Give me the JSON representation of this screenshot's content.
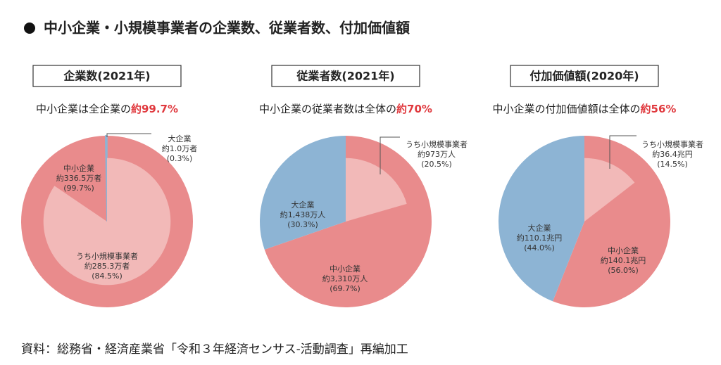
{
  "title": "中小企業・小規模事業者の企業数、従業者数、付加価値額",
  "source": "資料：総務省・経済産業省「令和３年経済センサス‐活動調査」再編加工",
  "chart_data": [
    {
      "type": "pie",
      "title": "企業数(2021年)",
      "subtitle": "中小企業は全企業の",
      "highlight": "約99.7%",
      "categories": [
        "中小企業",
        "大企業",
        "うち小規模事業者"
      ],
      "counts": [
        "約336.5万者",
        "約1.0万者",
        "約285.3万者"
      ],
      "values": [
        99.7,
        0.3,
        84.5
      ],
      "value_labels": [
        "(99.7%)",
        "(0.3%)",
        "(84.5%)"
      ],
      "colors": [
        "#e98b8c",
        "#8db4d4",
        "#f2b9b8"
      ]
    },
    {
      "type": "pie",
      "title": "従業者数(2021年)",
      "subtitle": "中小企業の従業者数は全体の",
      "highlight": "約70%",
      "categories": [
        "中小企業",
        "大企業",
        "うち小規模事業者"
      ],
      "counts": [
        "約3,310万人",
        "約1,438万人",
        "約973万人"
      ],
      "values": [
        69.7,
        30.3,
        20.5
      ],
      "value_labels": [
        "(69.7%)",
        "(30.3%)",
        "(20.5%)"
      ],
      "colors": [
        "#e98b8c",
        "#8db4d4",
        "#f2b9b8"
      ]
    },
    {
      "type": "pie",
      "title": "付加価値額(2020年)",
      "subtitle": "中小企業の付加価値額は全体の",
      "highlight": "約56%",
      "categories": [
        "中小企業",
        "大企業",
        "うち小規模事業者"
      ],
      "counts": [
        "約140.1兆円",
        "約110.1兆円",
        "約36.4兆円"
      ],
      "values": [
        56.0,
        44.0,
        14.5
      ],
      "value_labels": [
        "(56.0%)",
        "(44.0%)",
        "(14.5%)"
      ],
      "colors": [
        "#e98b8c",
        "#8db4d4",
        "#f2b9b8"
      ]
    }
  ]
}
